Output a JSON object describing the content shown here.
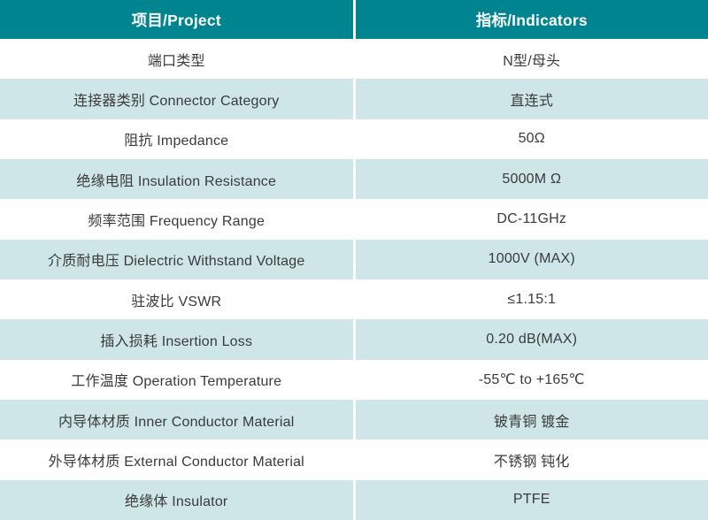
{
  "colors": {
    "header_bg": "#00848F",
    "header_text": "#FFFFFF",
    "alt_row_bg": "#CFE6E8",
    "row_bg": "#FFFFFF",
    "text": "#3A3A3A",
    "divider": "#FFFFFF"
  },
  "table": {
    "header": {
      "project": "项目/Project",
      "indicators": "指标/Indicators"
    },
    "rows": [
      {
        "project": "端口类型",
        "indicator": "N型/母头"
      },
      {
        "project": "连接器类别 Connector Category",
        "indicator": "直连式"
      },
      {
        "project": "阻抗 Impedance",
        "indicator": "50Ω"
      },
      {
        "project": "绝缘电阻 Insulation Resistance",
        "indicator": "5000M Ω"
      },
      {
        "project": "频率范围 Frequency Range",
        "indicator": "DC-11GHz"
      },
      {
        "project": "介质耐电压 Dielectric Withstand Voltage",
        "indicator": "1000V (MAX)"
      },
      {
        "project": "驻波比 VSWR",
        "indicator": "≤1.15:1"
      },
      {
        "project": "插入损耗 Insertion Loss",
        "indicator": "0.20 dB(MAX)"
      },
      {
        "project": "工作温度 Operation Temperature",
        "indicator": "-55℃ to +165℃"
      },
      {
        "project": "内导体材质 Inner Conductor Material",
        "indicator": "铍青铜 镀金"
      },
      {
        "project": "外导体材质 External Conductor Material",
        "indicator": "不锈钢 钝化"
      },
      {
        "project": "绝缘体 Insulator",
        "indicator": "PTFE"
      }
    ]
  }
}
